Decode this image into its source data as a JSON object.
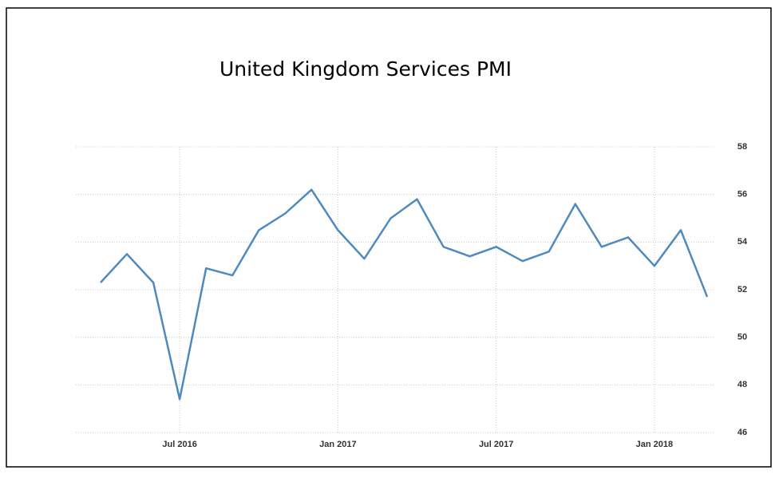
{
  "chart_data": {
    "type": "line",
    "title": "United Kingdom Services PMI",
    "x": [
      "Apr 2016",
      "May 2016",
      "Jun 2016",
      "Jul 2016",
      "Aug 2016",
      "Sep 2016",
      "Oct 2016",
      "Nov 2016",
      "Dec 2016",
      "Jan 2017",
      "Feb 2017",
      "Mar 2017",
      "Apr 2017",
      "May 2017",
      "Jun 2017",
      "Jul 2017",
      "Aug 2017",
      "Sep 2017",
      "Oct 2017",
      "Nov 2017",
      "Dec 2017",
      "Jan 2018",
      "Feb 2018",
      "Mar 2018"
    ],
    "values": [
      52.3,
      53.5,
      52.3,
      47.4,
      52.9,
      52.6,
      54.5,
      55.2,
      56.2,
      54.5,
      53.3,
      55.0,
      55.8,
      53.8,
      53.4,
      53.8,
      53.2,
      53.6,
      55.6,
      53.8,
      54.2,
      53.0,
      54.5,
      51.7
    ],
    "color": "#4f8abe",
    "xticks": [
      "Jul 2016",
      "Jan 2017",
      "Jul 2017",
      "Jan 2018"
    ],
    "ylim": [
      46,
      58
    ],
    "yticks": [
      46,
      48,
      50,
      52,
      54,
      56,
      58
    ],
    "grid": true,
    "y_axis_side": "right"
  }
}
